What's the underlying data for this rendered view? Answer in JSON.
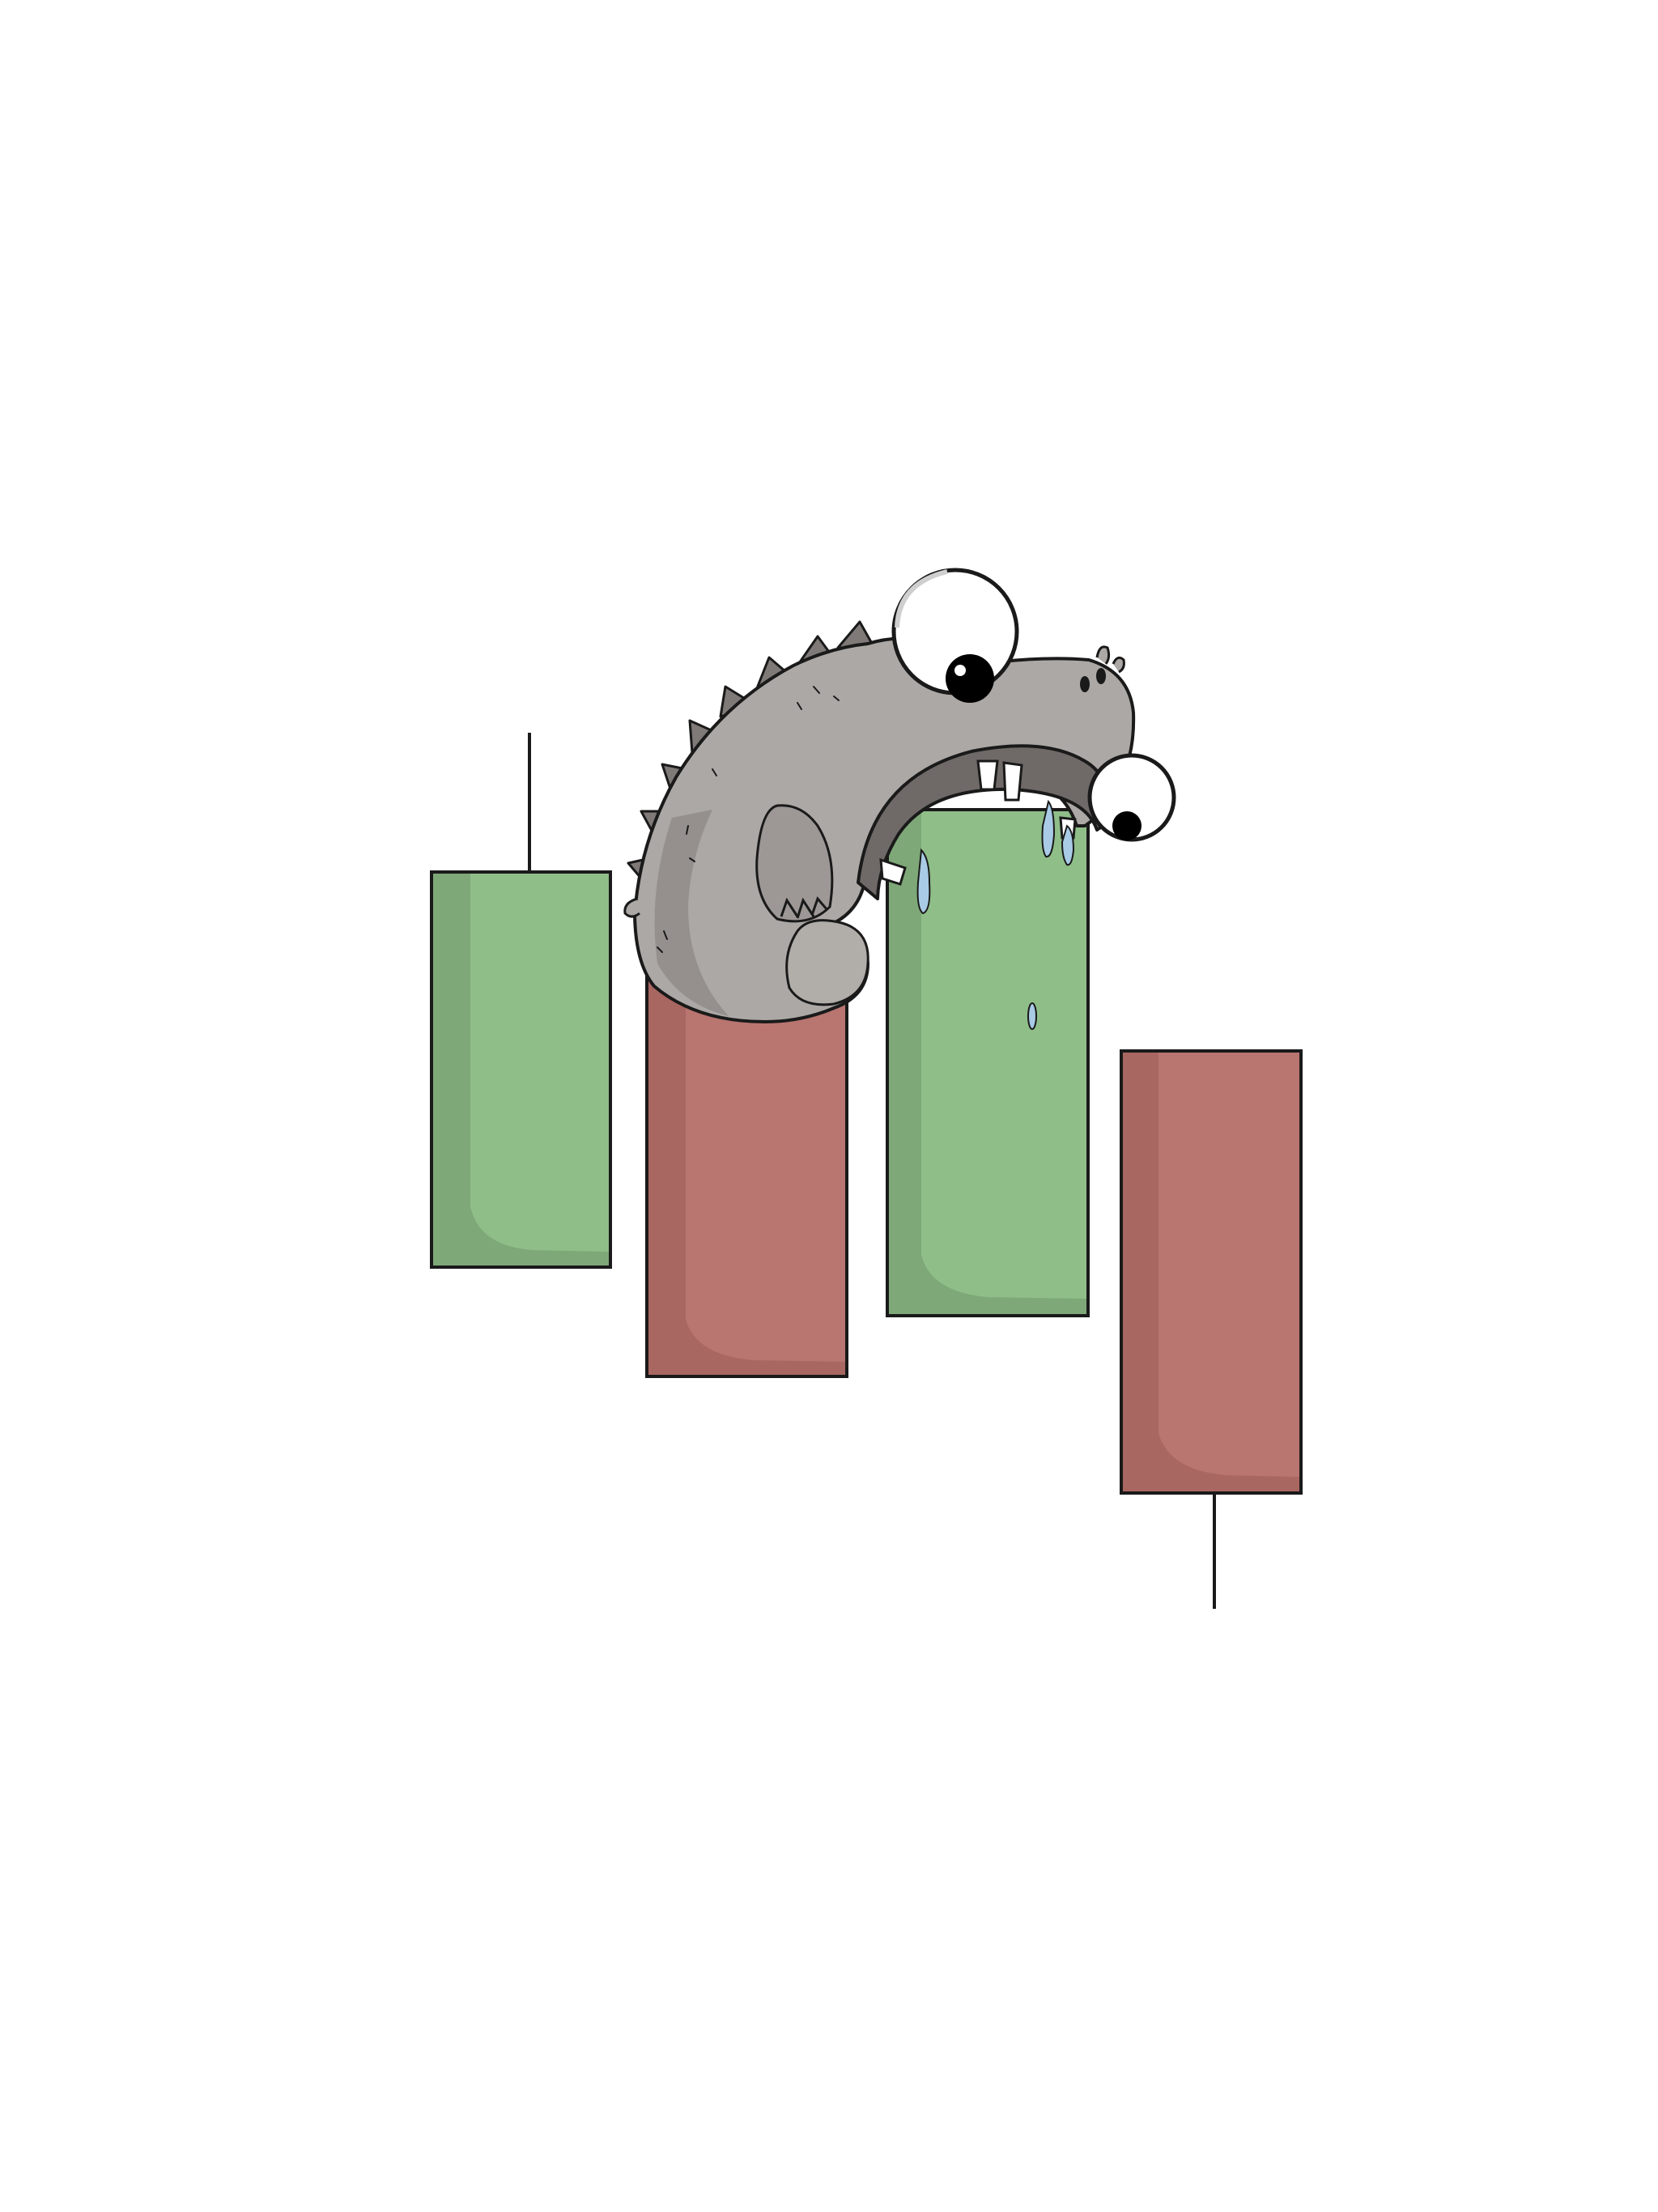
{
  "illustration": {
    "subject": "cartoon-dinosaur-biting-candlestick",
    "background_color": "#ffffff",
    "colors": {
      "bull_fill": "#8fbe89",
      "bull_shade": "#7ea878",
      "bear_fill": "#b97570",
      "bear_shade": "#a96762",
      "outline": "#1a1a1a",
      "dino_body": "#aca8a5",
      "dino_shade": "#8b8684",
      "dino_spikes": "#7f7a78",
      "eye_white": "#ffffff",
      "pupil": "#000000",
      "teeth": "#ffffff",
      "drool": "#a9cbe6"
    },
    "candles": [
      {
        "name": "candle-1",
        "direction": "bullish",
        "has_upper_wick": true,
        "has_lower_wick": false
      },
      {
        "name": "candle-2",
        "direction": "bearish",
        "has_upper_wick": false,
        "has_lower_wick": false
      },
      {
        "name": "candle-3",
        "direction": "bullish",
        "has_upper_wick": false,
        "has_lower_wick": false
      },
      {
        "name": "candle-4",
        "direction": "bearish",
        "has_upper_wick": false,
        "has_lower_wick": true
      }
    ]
  }
}
